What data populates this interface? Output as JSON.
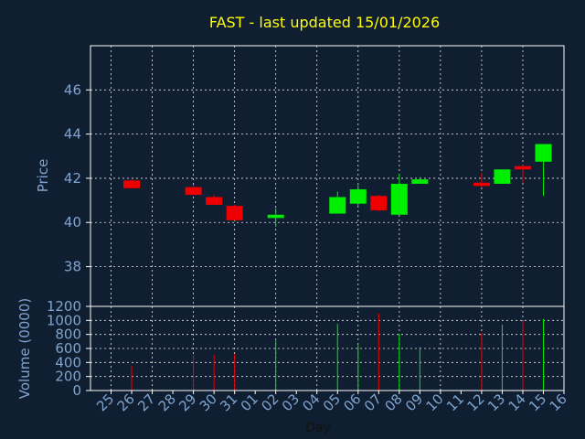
{
  "colors": {
    "background": "#0f1e31",
    "title": "#ffff00",
    "axis_text": "#7fa4cf",
    "frame": "#ffffff",
    "grid": "#ffffff",
    "up": "#00ee00",
    "down": "#ee0000"
  },
  "chart_data": [
    {
      "type": "candlestick",
      "title": "FAST - last updated 15/01/2026",
      "ylabel": "Price",
      "ylim": [
        36.2,
        48.0
      ],
      "yticks": [
        38,
        40,
        42,
        44,
        46
      ],
      "grid": true,
      "x_categories": [
        "25",
        "26",
        "27",
        "28",
        "29",
        "30",
        "31",
        "01",
        "02",
        "03",
        "04",
        "05",
        "06",
        "07",
        "08",
        "09",
        "10",
        "11",
        "12",
        "13",
        "14",
        "15",
        "16"
      ],
      "candles": [
        {
          "day": "26",
          "open": 41.9,
          "high": 41.95,
          "low": 41.55,
          "close": 41.55
        },
        {
          "day": "29",
          "open": 41.6,
          "high": 41.7,
          "low": 41.25,
          "close": 41.25
        },
        {
          "day": "30",
          "open": 41.15,
          "high": 41.25,
          "low": 40.8,
          "close": 40.8
        },
        {
          "day": "31",
          "open": 40.75,
          "high": 40.8,
          "low": 40.1,
          "close": 40.1
        },
        {
          "day": "02",
          "open": 40.2,
          "high": 40.65,
          "low": 39.8,
          "close": 40.35
        },
        {
          "day": "05",
          "open": 40.4,
          "high": 41.4,
          "low": 40.4,
          "close": 41.15
        },
        {
          "day": "06",
          "open": 40.85,
          "high": 41.75,
          "low": 40.75,
          "close": 41.5
        },
        {
          "day": "07",
          "open": 41.2,
          "high": 41.25,
          "low": 40.5,
          "close": 40.55
        },
        {
          "day": "08",
          "open": 40.35,
          "high": 42.2,
          "low": 40.35,
          "close": 41.75
        },
        {
          "day": "09",
          "open": 41.75,
          "high": 42.05,
          "low": 41.75,
          "close": 41.95
        },
        {
          "day": "12",
          "open": 41.8,
          "high": 42.25,
          "low": 41.6,
          "close": 41.65
        },
        {
          "day": "13",
          "open": 41.75,
          "high": 42.4,
          "low": 41.75,
          "close": 42.4
        },
        {
          "day": "14",
          "open": 42.55,
          "high": 42.6,
          "low": 41.8,
          "close": 42.4
        },
        {
          "day": "15",
          "open": 42.75,
          "high": 43.55,
          "low": 41.2,
          "close": 43.55
        }
      ]
    },
    {
      "type": "bar",
      "ylabel": "Volume (0000)",
      "xlabel": "Day",
      "ylim": [
        0,
        1200
      ],
      "yticks": [
        0,
        200,
        400,
        600,
        800,
        1000,
        1200
      ],
      "grid": true,
      "categories": [
        "26",
        "29",
        "30",
        "31",
        "02",
        "05",
        "06",
        "07",
        "08",
        "09",
        "12",
        "13",
        "14",
        "15"
      ],
      "values": [
        350,
        510,
        510,
        520,
        730,
        950,
        650,
        1100,
        810,
        620,
        830,
        940,
        990,
        1020
      ],
      "direction": [
        "down",
        "down",
        "down",
        "down",
        "up",
        "up",
        "up",
        "down",
        "up",
        "up",
        "down",
        "up",
        "down",
        "up"
      ]
    }
  ]
}
